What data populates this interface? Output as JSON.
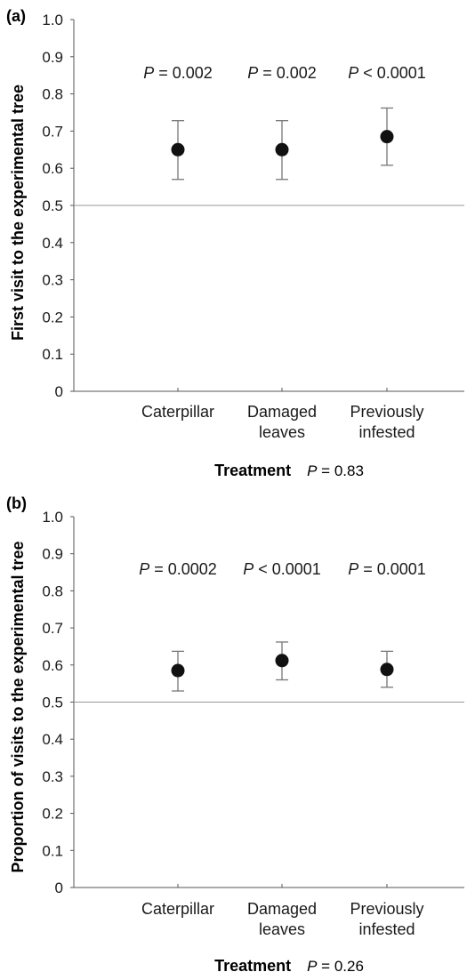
{
  "chart_data": [
    {
      "type": "scatter",
      "panel_label": "(a)",
      "ylabel": "First visit to the experimental tree",
      "xlabel": "Treatment",
      "overall_p": {
        "prefix": "P",
        "text": " = 0.83"
      },
      "categories": [
        {
          "lines": [
            "Caterpillar"
          ]
        },
        {
          "lines": [
            "Damaged",
            "leaves"
          ]
        },
        {
          "lines": [
            "Previously",
            "infested"
          ]
        }
      ],
      "values": [
        0.65,
        0.65,
        0.685
      ],
      "error_low": [
        0.57,
        0.57,
        0.608
      ],
      "error_high": [
        0.728,
        0.728,
        0.762
      ],
      "p_labels": [
        {
          "prefix": "P",
          "text": " = 0.002"
        },
        {
          "prefix": "P",
          "text": " = 0.002"
        },
        {
          "prefix": "P",
          "text": " < 0.0001"
        }
      ],
      "reference_line": 0.5,
      "ylim": [
        0,
        1.0
      ],
      "yticks": [
        "0",
        "0.1",
        "0.2",
        "0.3",
        "0.4",
        "0.5",
        "0.6",
        "0.7",
        "0.8",
        "0.9",
        "1.0"
      ],
      "grid": false
    },
    {
      "type": "scatter",
      "panel_label": "(b)",
      "ylabel": "Proportion of visits to the experimental tree",
      "xlabel": "Treatment",
      "overall_p": {
        "prefix": "P",
        "text": " = 0.26"
      },
      "categories": [
        {
          "lines": [
            "Caterpillar"
          ]
        },
        {
          "lines": [
            "Damaged",
            "leaves"
          ]
        },
        {
          "lines": [
            "Previously",
            "infested"
          ]
        }
      ],
      "values": [
        0.585,
        0.612,
        0.588
      ],
      "error_low": [
        0.53,
        0.56,
        0.54
      ],
      "error_high": [
        0.637,
        0.662,
        0.637
      ],
      "p_labels": [
        {
          "prefix": "P",
          "text": " = 0.0002"
        },
        {
          "prefix": "P",
          "text": " < 0.0001"
        },
        {
          "prefix": "P",
          "text": " = 0.0001"
        }
      ],
      "reference_line": 0.5,
      "ylim": [
        0,
        1.0
      ],
      "yticks": [
        "0",
        "0.1",
        "0.2",
        "0.3",
        "0.4",
        "0.5",
        "0.6",
        "0.7",
        "0.8",
        "0.9",
        "1.0"
      ],
      "grid": false
    }
  ]
}
